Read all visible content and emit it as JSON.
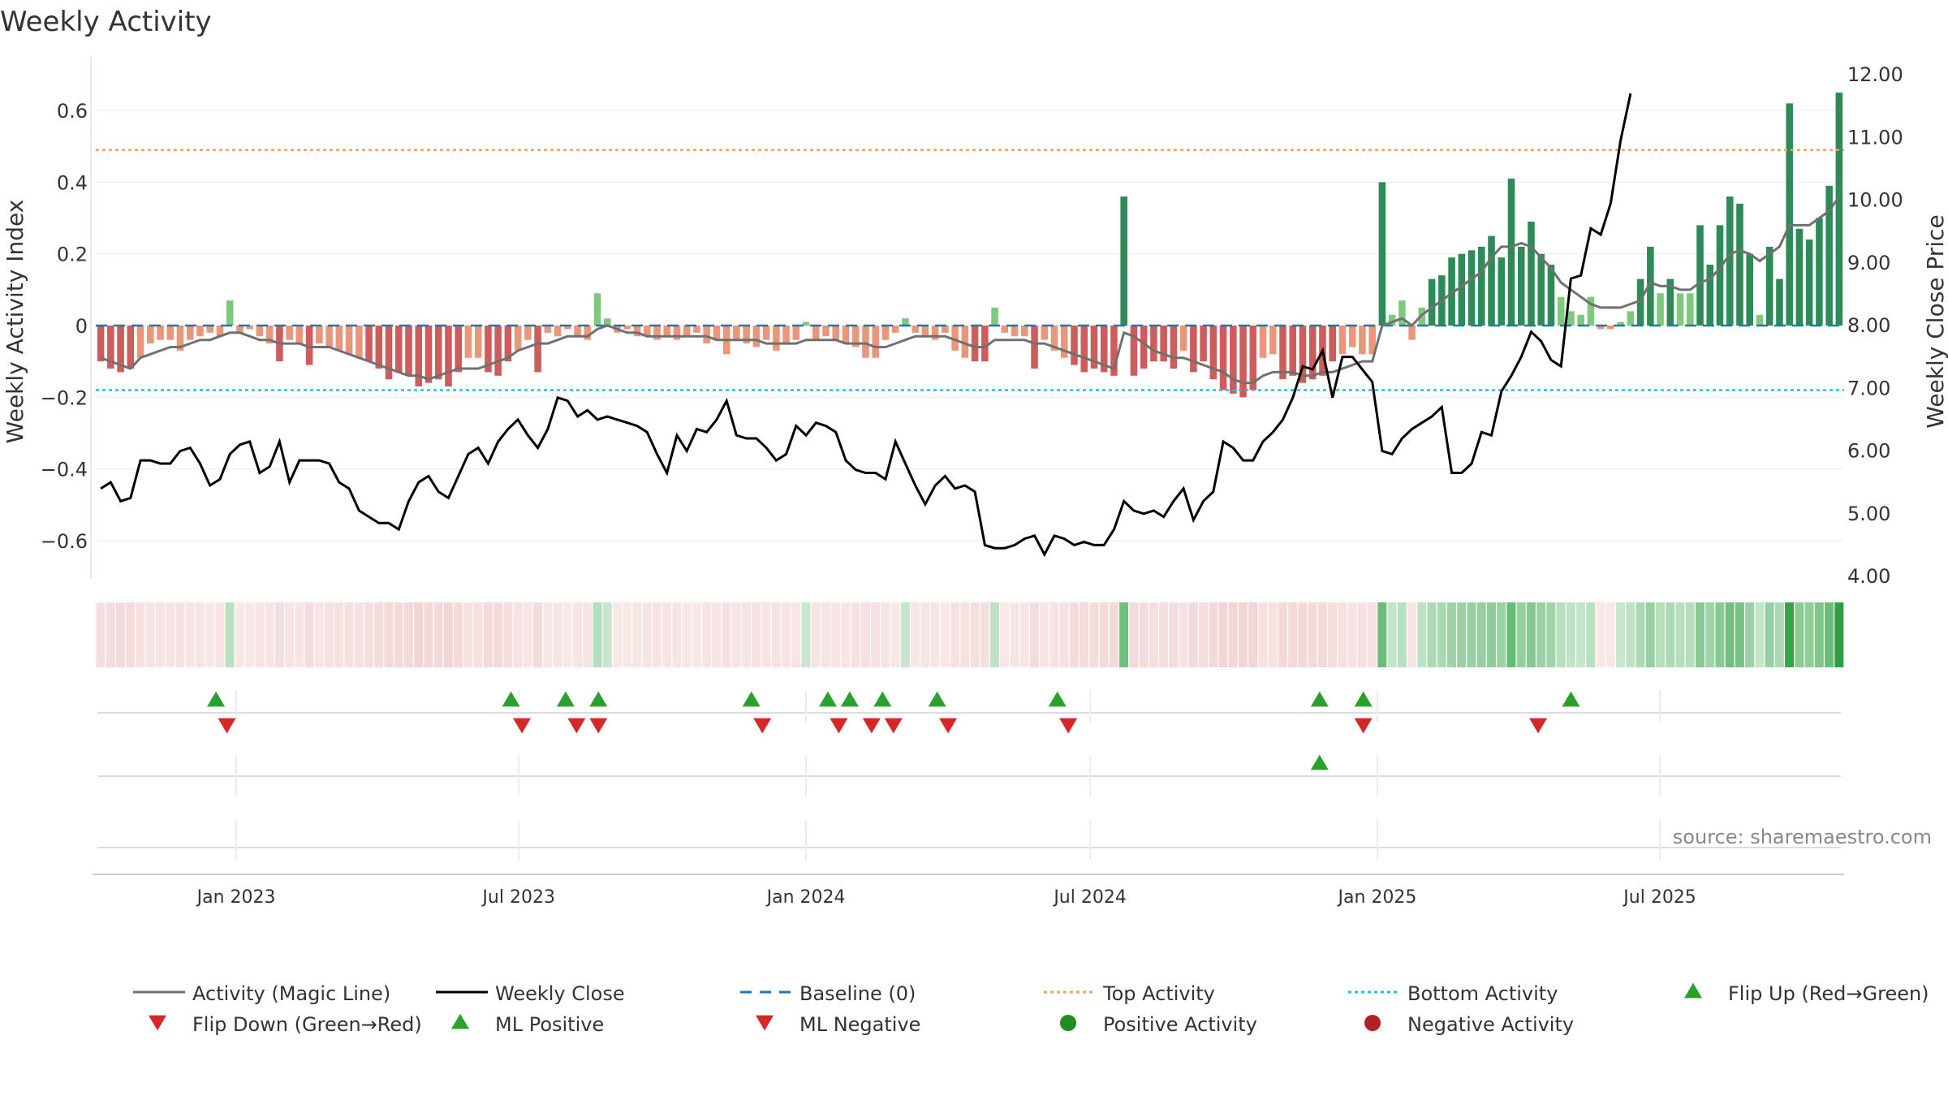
{
  "chart_data": {
    "type": "bar+line",
    "title": "Weekly Activity",
    "ylabel_left": "Weekly Activity Index",
    "ylabel_right": "Weekly Close Price",
    "ylim_left": [
      -0.7,
      0.7
    ],
    "ylim_right": [
      4.0,
      12.0
    ],
    "yticks_left": [
      "0.6",
      "0.4",
      "0.2",
      "0",
      "−0.2",
      "−0.4",
      "−0.6"
    ],
    "yticks_left_values": [
      0.6,
      0.4,
      0.2,
      0,
      -0.2,
      -0.4,
      -0.6
    ],
    "yticks_right": [
      "12.00",
      "11.00",
      "10.00",
      "9.00",
      "8.00",
      "7.00",
      "6.00",
      "5.00",
      "4.00"
    ],
    "yticks_right_values": [
      12,
      11,
      10,
      9,
      8,
      7,
      6,
      5,
      4
    ],
    "top_activity": 0.49,
    "bottom_activity": -0.18,
    "baseline": 0,
    "x_start": "2022-10-03",
    "x_end": "2025-10-27",
    "xticks": [
      "Jan 2023",
      "Jul 2023",
      "Jan 2024",
      "Jul 2024",
      "Jan 2025",
      "Jul 2025"
    ],
    "xtick_dates": [
      "2023-01-01",
      "2023-07-01",
      "2024-01-01",
      "2024-07-01",
      "2025-01-01",
      "2025-07-01"
    ],
    "weekly_activity": [
      -0.1,
      -0.12,
      -0.13,
      -0.12,
      -0.09,
      -0.05,
      -0.04,
      -0.04,
      -0.07,
      -0.04,
      -0.03,
      -0.02,
      -0.03,
      0.07,
      -0.02,
      -0.01,
      -0.03,
      -0.05,
      -0.1,
      -0.04,
      -0.05,
      -0.11,
      -0.05,
      -0.06,
      -0.07,
      -0.08,
      -0.09,
      -0.1,
      -0.12,
      -0.15,
      -0.13,
      -0.14,
      -0.17,
      -0.16,
      -0.15,
      -0.17,
      -0.13,
      -0.09,
      -0.09,
      -0.13,
      -0.14,
      -0.1,
      -0.07,
      -0.04,
      -0.13,
      -0.02,
      -0.03,
      -0.01,
      -0.03,
      -0.04,
      0.09,
      0.02,
      -0.02,
      -0.01,
      -0.03,
      -0.03,
      -0.04,
      -0.03,
      -0.04,
      -0.03,
      -0.02,
      -0.05,
      -0.04,
      -0.08,
      -0.04,
      -0.05,
      -0.06,
      -0.04,
      -0.07,
      -0.05,
      -0.04,
      0.01,
      -0.04,
      -0.03,
      -0.04,
      -0.05,
      -0.06,
      -0.09,
      -0.09,
      -0.04,
      -0.02,
      0.02,
      -0.02,
      -0.03,
      -0.04,
      -0.02,
      -0.07,
      -0.09,
      -0.1,
      -0.1,
      0.05,
      -0.02,
      -0.03,
      -0.03,
      -0.12,
      -0.04,
      -0.07,
      -0.09,
      -0.11,
      -0.13,
      -0.12,
      -0.13,
      -0.14,
      0.36,
      -0.14,
      -0.12,
      -0.1,
      -0.1,
      -0.12,
      -0.07,
      -0.13,
      -0.1,
      -0.15,
      -0.18,
      -0.19,
      -0.2,
      -0.18,
      -0.09,
      -0.08,
      -0.15,
      -0.14,
      -0.16,
      -0.15,
      -0.14,
      -0.1,
      -0.08,
      -0.06,
      -0.08,
      -0.08,
      0.4,
      0.03,
      0.07,
      -0.04,
      0.05,
      0.13,
      0.14,
      0.19,
      0.2,
      0.21,
      0.22,
      0.25,
      0.19,
      0.41,
      0.22,
      0.29,
      0.2,
      0.17,
      0.08,
      0.04,
      0.03,
      0.08,
      -0.01,
      -0.01,
      0.01,
      0.04,
      0.13,
      0.22,
      0.09,
      0.13,
      0.09,
      0.09,
      0.28,
      0.17,
      0.28,
      0.36,
      0.34,
      0.2,
      0.03,
      0.22,
      0.13,
      0.62,
      0.27,
      0.24,
      0.3,
      0.39,
      0.65
    ],
    "magic_line": [
      -0.09,
      -0.1,
      -0.11,
      -0.12,
      -0.09,
      -0.08,
      -0.07,
      -0.06,
      -0.06,
      -0.05,
      -0.04,
      -0.04,
      -0.03,
      -0.02,
      -0.02,
      -0.03,
      -0.04,
      -0.04,
      -0.05,
      -0.05,
      -0.05,
      -0.06,
      -0.06,
      -0.06,
      -0.07,
      -0.08,
      -0.09,
      -0.1,
      -0.11,
      -0.12,
      -0.13,
      -0.14,
      -0.14,
      -0.15,
      -0.14,
      -0.13,
      -0.12,
      -0.12,
      -0.12,
      -0.11,
      -0.1,
      -0.09,
      -0.07,
      -0.06,
      -0.05,
      -0.05,
      -0.04,
      -0.03,
      -0.03,
      -0.03,
      -0.01,
      0.0,
      -0.01,
      -0.02,
      -0.02,
      -0.03,
      -0.03,
      -0.03,
      -0.03,
      -0.03,
      -0.03,
      -0.03,
      -0.04,
      -0.04,
      -0.04,
      -0.04,
      -0.04,
      -0.05,
      -0.05,
      -0.05,
      -0.05,
      -0.04,
      -0.04,
      -0.04,
      -0.04,
      -0.05,
      -0.05,
      -0.05,
      -0.06,
      -0.06,
      -0.05,
      -0.04,
      -0.03,
      -0.03,
      -0.03,
      -0.03,
      -0.04,
      -0.05,
      -0.06,
      -0.06,
      -0.04,
      -0.04,
      -0.04,
      -0.04,
      -0.05,
      -0.05,
      -0.06,
      -0.07,
      -0.08,
      -0.09,
      -0.1,
      -0.11,
      -0.12,
      -0.02,
      -0.03,
      -0.05,
      -0.07,
      -0.08,
      -0.09,
      -0.09,
      -0.1,
      -0.11,
      -0.12,
      -0.13,
      -0.15,
      -0.16,
      -0.16,
      -0.14,
      -0.13,
      -0.13,
      -0.13,
      -0.14,
      -0.14,
      -0.13,
      -0.13,
      -0.12,
      -0.11,
      -0.1,
      -0.1,
      0.0,
      0.01,
      0.02,
      0.0,
      0.03,
      0.05,
      0.07,
      0.09,
      0.11,
      0.13,
      0.15,
      0.19,
      0.22,
      0.22,
      0.23,
      0.22,
      0.19,
      0.16,
      0.12,
      0.1,
      0.08,
      0.06,
      0.05,
      0.05,
      0.05,
      0.06,
      0.07,
      0.12,
      0.11,
      0.11,
      0.1,
      0.1,
      0.12,
      0.13,
      0.16,
      0.2,
      0.21,
      0.2,
      0.18,
      0.2,
      0.22,
      0.28,
      0.28,
      0.28,
      0.3,
      0.32,
      0.36
    ],
    "weekly_close": [
      5.4,
      5.5,
      5.2,
      5.25,
      5.85,
      5.85,
      5.8,
      5.8,
      6.0,
      6.05,
      5.8,
      5.45,
      5.55,
      5.95,
      6.1,
      6.15,
      5.65,
      5.75,
      6.15,
      5.5,
      5.85,
      5.85,
      5.85,
      5.8,
      5.5,
      5.4,
      5.05,
      4.95,
      4.85,
      4.85,
      4.75,
      5.2,
      5.5,
      5.6,
      5.35,
      5.25,
      5.6,
      5.95,
      6.05,
      5.8,
      6.15,
      6.35,
      6.5,
      6.25,
      6.05,
      6.35,
      6.85,
      6.8,
      6.55,
      6.65,
      6.5,
      6.55,
      6.5,
      6.45,
      6.4,
      6.3,
      5.95,
      5.65,
      6.25,
      6.0,
      6.35,
      6.3,
      6.5,
      6.8,
      6.25,
      6.2,
      6.2,
      6.05,
      5.85,
      5.95,
      6.4,
      6.25,
      6.45,
      6.4,
      6.3,
      5.85,
      5.7,
      5.65,
      5.65,
      5.55,
      6.15,
      5.8,
      5.45,
      5.15,
      5.45,
      5.6,
      5.4,
      5.45,
      5.35,
      4.5,
      4.45,
      4.45,
      4.5,
      4.6,
      4.65,
      4.35,
      4.65,
      4.6,
      4.5,
      4.55,
      4.5,
      4.5,
      4.75,
      5.2,
      5.05,
      5.0,
      5.05,
      4.95,
      5.2,
      5.4,
      4.9,
      5.2,
      5.35,
      6.15,
      6.05,
      5.85,
      5.85,
      6.15,
      6.3,
      6.5,
      6.85,
      7.35,
      7.3,
      7.6,
      6.85,
      7.5,
      7.5,
      7.3,
      7.1,
      6.0,
      5.95,
      6.2,
      6.35,
      6.45,
      6.55,
      6.7,
      5.65,
      5.65,
      5.8,
      6.3,
      6.25,
      6.95,
      7.2,
      7.5,
      7.9,
      7.75,
      7.45,
      7.35,
      8.75,
      8.8,
      9.55,
      9.45,
      9.95,
      10.95,
      11.7
    ],
    "flip_up_dates": [
      "2022-12-19",
      "2023-06-26",
      "2023-07-31",
      "2023-08-21",
      "2023-11-27",
      "2024-01-15",
      "2024-01-29",
      "2024-02-19",
      "2024-03-25",
      "2024-06-10",
      "2024-11-25",
      "2024-12-23",
      "2025-05-05"
    ],
    "flip_down_dates": [
      "2022-12-26",
      "2023-07-03",
      "2023-08-07",
      "2023-08-21",
      "2023-12-04",
      "2024-01-22",
      "2024-02-12",
      "2024-02-26",
      "2024-04-01",
      "2024-06-17",
      "2024-12-23",
      "2025-04-14"
    ],
    "ml_positive_dates": [
      "2024-11-25"
    ],
    "source": "source: sharemaestro.com",
    "legend": [
      {
        "label": "Activity (Magic Line)",
        "marker": "line",
        "color": "#707070"
      },
      {
        "label": "Weekly Close",
        "marker": "line",
        "color": "#000000"
      },
      {
        "label": "Baseline (0)",
        "marker": "dashed",
        "color": "#1f77b4"
      },
      {
        "label": "Top Activity",
        "marker": "dotted",
        "color": "#f4a261"
      },
      {
        "label": "Bottom Activity",
        "marker": "dotted",
        "color": "#22c3d6"
      },
      {
        "label": "Flip Up (Red→Green)",
        "marker": "triangle-up",
        "color": "#2ca02c"
      },
      {
        "label": "Flip Down (Green→Red)",
        "marker": "triangle-down",
        "color": "#d62728"
      },
      {
        "label": "ML Positive",
        "marker": "triangle-up",
        "color": "#2ca02c"
      },
      {
        "label": "ML Negative",
        "marker": "triangle-down",
        "color": "#d62728"
      },
      {
        "label": "Positive Activity",
        "marker": "circle",
        "color": "#228b22"
      },
      {
        "label": "Negative Activity",
        "marker": "circle",
        "color": "#b22222"
      }
    ]
  }
}
